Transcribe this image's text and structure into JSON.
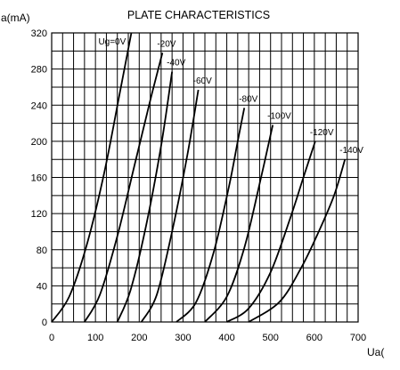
{
  "chart_data": {
    "type": "line",
    "title": "PLATE CHARACTERISTICS",
    "ylabel": "a(mA)",
    "xlabel": "Ua(",
    "xlim": [
      0,
      700
    ],
    "ylim": [
      0,
      320
    ],
    "x_ticks": [
      0,
      100,
      200,
      300,
      400,
      500,
      600,
      700
    ],
    "y_ticks": [
      0,
      40,
      80,
      120,
      160,
      200,
      240,
      280,
      320
    ],
    "grid": true,
    "series": [
      {
        "name": "Ug=0V",
        "x": [
          0,
          40,
          80,
          120,
          155,
          182
        ],
        "y": [
          0,
          28,
          85,
          165,
          252,
          320
        ]
      },
      {
        "name": "-20V",
        "x": [
          75,
          110,
          150,
          190,
          225,
          253
        ],
        "y": [
          0,
          30,
          95,
          175,
          245,
          298
        ]
      },
      {
        "name": "-40V",
        "x": [
          150,
          180,
          215,
          250,
          275
        ],
        "y": [
          0,
          35,
          105,
          195,
          277
        ]
      },
      {
        "name": "-60V",
        "x": [
          205,
          240,
          275,
          310,
          335
        ],
        "y": [
          0,
          30,
          100,
          185,
          257
        ]
      },
      {
        "name": "-80V",
        "x": [
          285,
          330,
          370,
          405,
          425,
          440
        ],
        "y": [
          0,
          22,
          77,
          150,
          200,
          237
        ]
      },
      {
        "name": "-100V",
        "x": [
          350,
          400,
          440,
          475,
          505
        ],
        "y": [
          0,
          28,
          82,
          153,
          218
        ]
      },
      {
        "name": "-120V",
        "x": [
          400,
          450,
          500,
          545,
          575,
          602
        ],
        "y": [
          0,
          15,
          55,
          115,
          160,
          200
        ]
      },
      {
        "name": "-140V",
        "x": [
          450,
          520,
          570,
          610,
          645,
          670
        ],
        "y": [
          0,
          22,
          60,
          100,
          140,
          180
        ]
      }
    ]
  }
}
